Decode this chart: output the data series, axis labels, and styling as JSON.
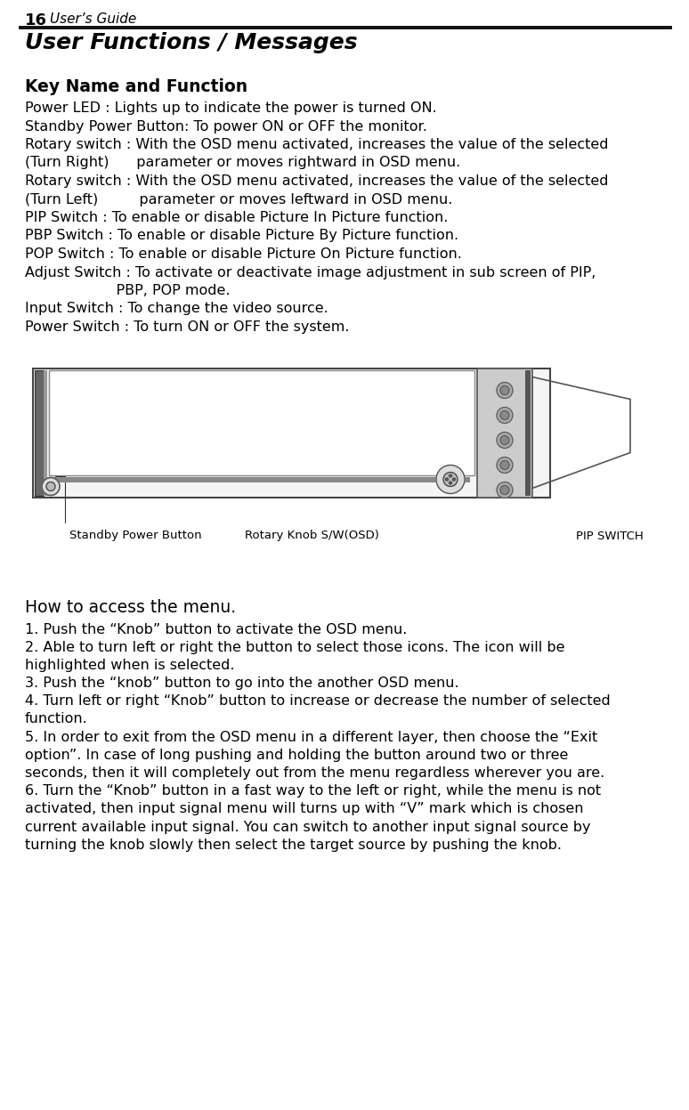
{
  "page_number": "16",
  "page_header": "User’s Guide",
  "title": "User Functions / Messages",
  "section_heading": "Key Name and Function",
  "body_lines": [
    "Power LED : Lights up to indicate the power is turned ON.",
    "Standby Power Button: To power ON or OFF the monitor.",
    "Rotary switch : With the OSD menu activated, increases the value of the selected",
    "(Turn Right)      parameter or moves rightward in OSD menu.",
    "Rotary switch : With the OSD menu activated, increases the value of the selected",
    "(Turn Left)         parameter or moves leftward in OSD menu.",
    "PIP Switch : To enable or disable Picture In Picture function.",
    "PBP Switch : To enable or disable Picture By Picture function.",
    "POP Switch : To enable or disable Picture On Picture function.",
    "Adjust Switch : To activate or deactivate image adjustment in sub screen of PIP,",
    "                    PBP, POP mode.",
    "Input Switch : To change the video source.",
    "Power Switch : To turn ON or OFF the system."
  ],
  "how_to_heading": "How to access the menu.",
  "how_to_lines": [
    "1. Push the “Knob” button to activate the OSD menu.",
    "2. Able to turn left or right the button to select those icons. The icon will be",
    "highlighted when is selected.",
    "3. Push the “knob” button to go into the another OSD menu.",
    "4. Turn left or right “Knob” button to increase or decrease the number of selected",
    "function.",
    "5. In order to exit from the OSD menu in a different layer, then choose the “Exit",
    "option”. In case of long pushing and holding the button around two or three",
    "seconds, then it will completely out from the menu regardless wherever you are.",
    "6. Turn the “Knob” button in a fast way to the left or right, while the menu is not",
    "activated, then input signal menu will turns up with “V” mark which is chosen",
    "current available input signal. You can switch to another input signal source by",
    "turning the knob slowly then select the target source by pushing the knob."
  ],
  "label_standby": "Standby Power Button",
  "label_rotary": "Rotary Knob S/W(OSD)",
  "label_pip": "PIP SWITCH",
  "bg_color": "#ffffff",
  "text_color": "#000000",
  "body_fontsize": 11.5,
  "heading_fontsize": 13.5,
  "title_fontsize": 18,
  "header_fontsize": 11
}
